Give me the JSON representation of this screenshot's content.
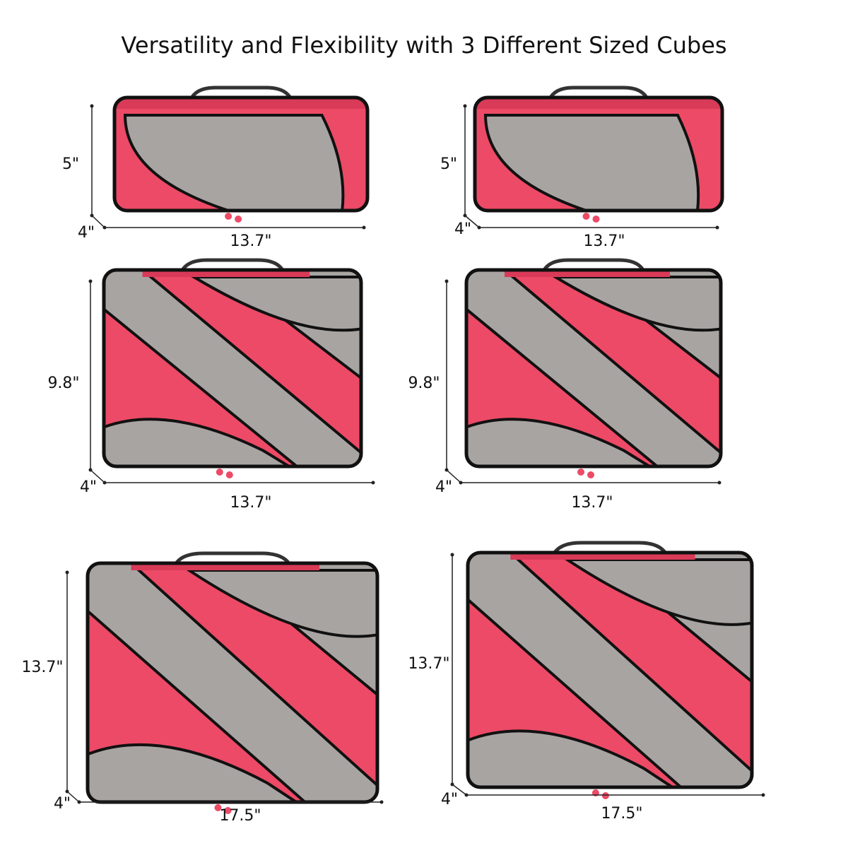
{
  "title": "Versatility and Flexibility with 3 Different Sized Cubes",
  "cubes": [
    {
      "height": "5\"",
      "depth": "4\"",
      "width": "13.7\""
    },
    {
      "height": "5\"",
      "depth": "4\"",
      "width": "13.7\""
    },
    {
      "height": "9.8\"",
      "depth": "4\"",
      "width": "13.7\""
    },
    {
      "height": "9.8\"",
      "depth": "4\"",
      "width": "13.7\""
    },
    {
      "height": "13.7\"",
      "depth": "4\"",
      "width": "17.5\""
    },
    {
      "height": "13.7\"",
      "depth": "4\"",
      "width": "17.5\""
    }
  ]
}
